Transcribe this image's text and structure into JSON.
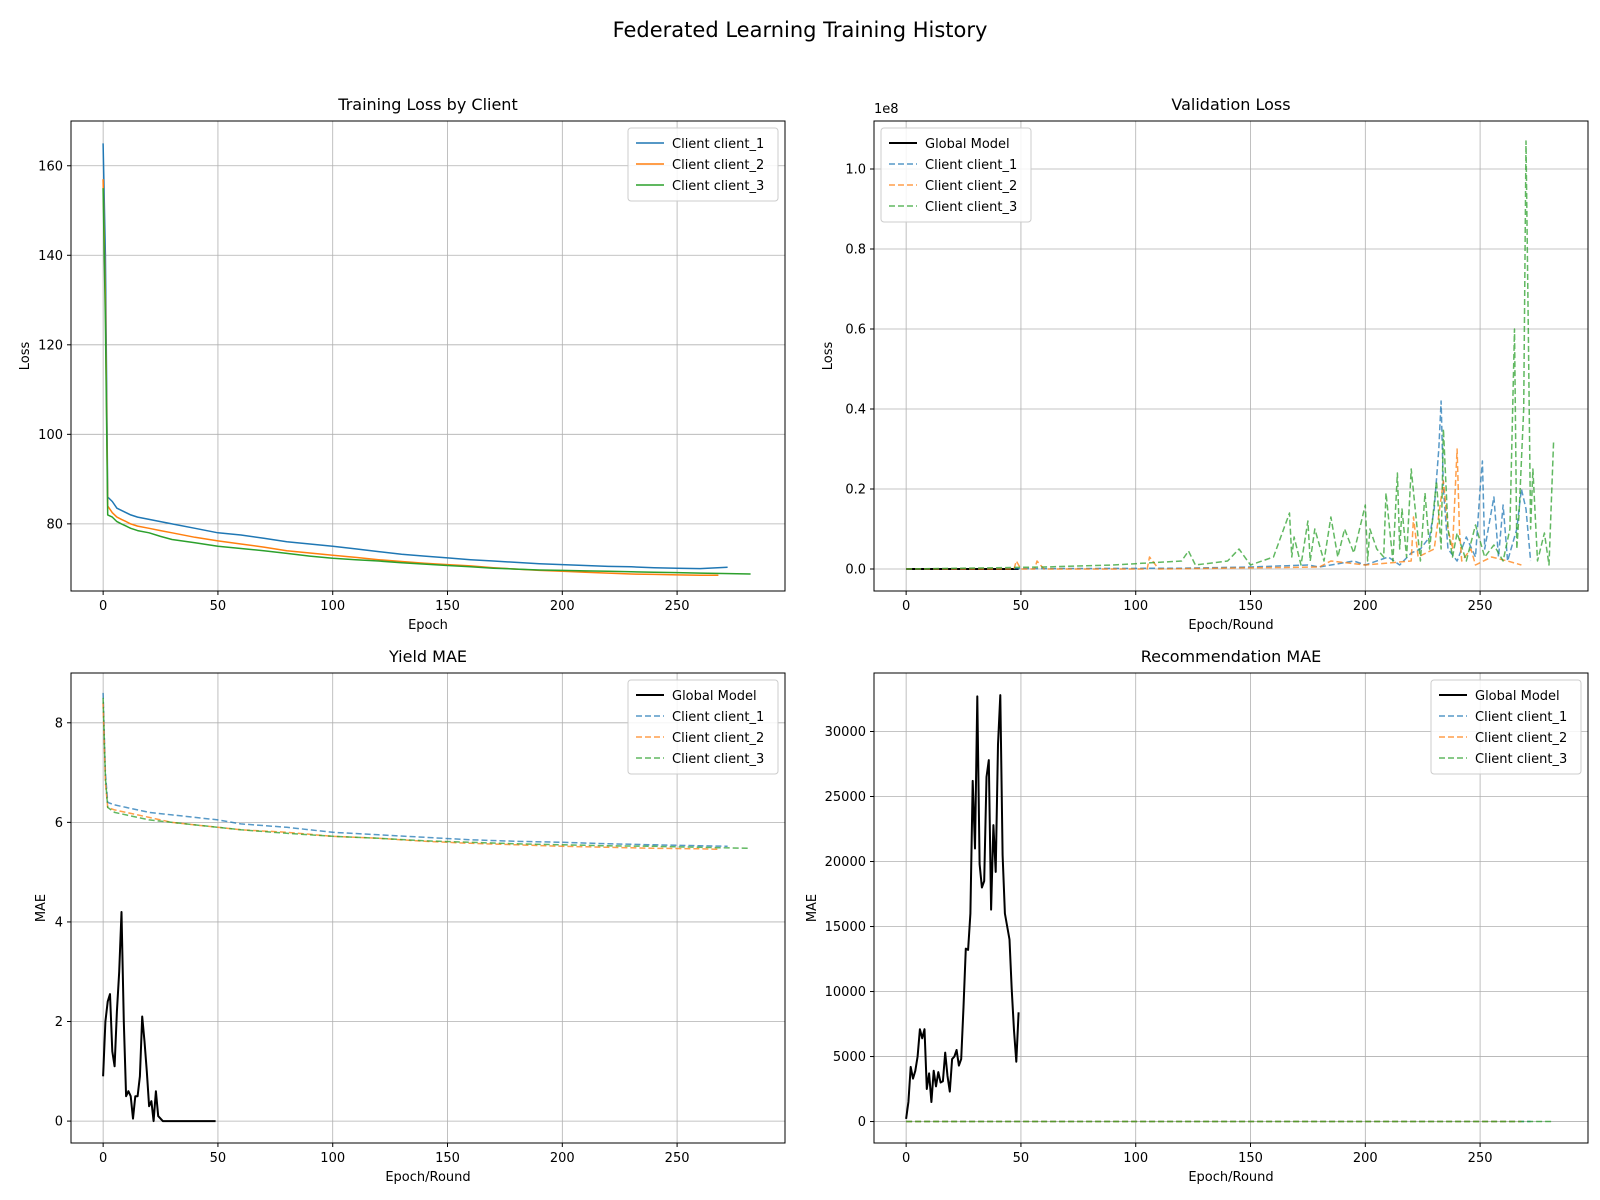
{
  "figure": {
    "title": "Federated Learning Training History"
  },
  "colors": {
    "client_1": "#1f77b4",
    "client_2": "#ff7f0e",
    "client_3": "#2ca02c",
    "global": "#000000",
    "grid": "#b0b0b0"
  },
  "chart_data": [
    {
      "type": "line",
      "title": "Training Loss by Client",
      "xlabel": "Epoch",
      "ylabel": "Loss",
      "xlim": [
        -14,
        297
      ],
      "ylim": [
        65,
        170
      ],
      "xticks": [
        0,
        50,
        100,
        150,
        200,
        250
      ],
      "yticks": [
        80,
        100,
        120,
        140,
        160
      ],
      "grid": true,
      "legend": "top-right",
      "series": [
        {
          "name": "Client client_1",
          "color": "#1f77b4",
          "dash": false,
          "width": 1.5,
          "alpha": 1,
          "x": [
            0,
            1,
            2,
            4,
            6,
            8,
            10,
            12,
            15,
            20,
            25,
            30,
            40,
            50,
            60,
            70,
            80,
            90,
            100,
            110,
            120,
            130,
            140,
            150,
            160,
            170,
            180,
            190,
            200,
            210,
            220,
            230,
            240,
            250,
            260,
            272
          ],
          "y": [
            165,
            140,
            86,
            85,
            83.5,
            83,
            82.5,
            82,
            81.5,
            81,
            80.5,
            80,
            79,
            78,
            77.5,
            76.8,
            76,
            75.5,
            75,
            74.4,
            73.8,
            73.2,
            72.8,
            72.4,
            72,
            71.7,
            71.4,
            71.1,
            70.9,
            70.7,
            70.5,
            70.4,
            70.2,
            70.1,
            70,
            70.3
          ]
        },
        {
          "name": "Client client_2",
          "color": "#ff7f0e",
          "dash": false,
          "width": 1.5,
          "alpha": 1,
          "x": [
            0,
            1,
            2,
            4,
            6,
            8,
            10,
            12,
            15,
            20,
            25,
            30,
            40,
            50,
            60,
            70,
            80,
            90,
            100,
            110,
            120,
            130,
            140,
            150,
            160,
            170,
            180,
            190,
            200,
            210,
            220,
            230,
            240,
            250,
            260,
            268
          ],
          "y": [
            157,
            130,
            84,
            82.5,
            81.5,
            81,
            80.5,
            80,
            79.5,
            79,
            78.5,
            78,
            77,
            76.2,
            75.5,
            74.8,
            74,
            73.5,
            73,
            72.5,
            72,
            71.6,
            71.2,
            70.9,
            70.6,
            70.2,
            69.9,
            69.6,
            69.4,
            69.2,
            69,
            68.8,
            68.7,
            68.6,
            68.5,
            68.5
          ]
        },
        {
          "name": "Client client_3",
          "color": "#2ca02c",
          "dash": false,
          "width": 1.5,
          "alpha": 1,
          "x": [
            0,
            1,
            2,
            4,
            6,
            8,
            10,
            12,
            15,
            20,
            25,
            30,
            40,
            50,
            60,
            70,
            80,
            90,
            100,
            110,
            120,
            130,
            140,
            150,
            160,
            170,
            180,
            190,
            200,
            210,
            220,
            230,
            240,
            250,
            260,
            270,
            282
          ],
          "y": [
            155,
            125,
            82,
            81.5,
            80.5,
            80,
            79.5,
            79,
            78.5,
            78,
            77.2,
            76.5,
            75.8,
            75,
            74.5,
            74,
            73.4,
            72.8,
            72.3,
            72,
            71.7,
            71.3,
            71,
            70.7,
            70.4,
            70.1,
            69.9,
            69.7,
            69.6,
            69.5,
            69.4,
            69.3,
            69.2,
            69.1,
            69,
            68.9,
            68.8
          ]
        }
      ]
    },
    {
      "type": "line",
      "title": "Validation Loss",
      "xlabel": "Epoch/Round",
      "ylabel": "Loss",
      "y_multiplier_label": "1e8",
      "xlim": [
        -14,
        297
      ],
      "ylim": [
        -0.055,
        1.12
      ],
      "xticks": [
        0,
        50,
        100,
        150,
        200,
        250
      ],
      "yticks": [
        0.0,
        0.2,
        0.4,
        0.6,
        0.8,
        1.0
      ],
      "ytick_labels": [
        "0.0",
        "0.2",
        "0.4",
        "0.6",
        "0.8",
        "1.0"
      ],
      "grid": true,
      "legend": "top-left",
      "series": [
        {
          "name": "Global Model",
          "color": "#000000",
          "dash": false,
          "width": 2,
          "alpha": 1,
          "x": [
            0,
            49
          ],
          "y": [
            0,
            0
          ]
        },
        {
          "name": "Client client_1",
          "color": "#1f77b4",
          "dash": true,
          "width": 1.5,
          "alpha": 0.75,
          "x": [
            0,
            120,
            150,
            175,
            180,
            195,
            200,
            210,
            215,
            220,
            224,
            228,
            230,
            232,
            233,
            234,
            236,
            240,
            244,
            248,
            250,
            251,
            252,
            256,
            258,
            260,
            262,
            266,
            268,
            270,
            272
          ],
          "y": [
            0,
            0.002,
            0.005,
            0.01,
            0.005,
            0.02,
            0.01,
            0.03,
            0.01,
            0.04,
            0.05,
            0.08,
            0.15,
            0.3,
            0.42,
            0.2,
            0.05,
            0.02,
            0.08,
            0.03,
            0.2,
            0.27,
            0.05,
            0.18,
            0.03,
            0.16,
            0.02,
            0.1,
            0.2,
            0.15,
            0.02
          ]
        },
        {
          "name": "Client client_2",
          "color": "#ff7f0e",
          "dash": true,
          "width": 1.5,
          "alpha": 0.75,
          "x": [
            0,
            47,
            48,
            50,
            56,
            57,
            60,
            105,
            106,
            110,
            180,
            185,
            200,
            220,
            221,
            223,
            230,
            234,
            236,
            238,
            240,
            241,
            242,
            246,
            248,
            255,
            262,
            268
          ],
          "y": [
            0,
            0,
            0.02,
            0,
            0,
            0.02,
            0,
            0,
            0.03,
            0,
            0.005,
            0.02,
            0.01,
            0.02,
            0.13,
            0.03,
            0.05,
            0.22,
            0.1,
            0.05,
            0.3,
            0.1,
            0.02,
            0.05,
            0.01,
            0.03,
            0.02,
            0.01
          ]
        },
        {
          "name": "Client client_3",
          "color": "#2ca02c",
          "dash": true,
          "width": 1.5,
          "alpha": 0.75,
          "x": [
            0,
            60,
            90,
            120,
            123,
            126,
            140,
            145,
            150,
            160,
            167,
            168,
            169,
            172,
            175,
            176,
            178,
            182,
            185,
            188,
            191,
            195,
            200,
            201,
            202,
            205,
            208,
            209,
            212,
            214,
            215,
            216,
            218,
            220,
            224,
            226,
            228,
            231,
            233,
            234,
            236,
            238,
            240,
            244,
            248,
            252,
            256,
            260,
            263,
            265,
            266,
            267,
            269,
            270,
            271,
            272,
            273,
            275,
            278,
            280,
            282
          ],
          "y": [
            0,
            0.005,
            0.01,
            0.02,
            0.045,
            0.01,
            0.02,
            0.05,
            0.01,
            0.03,
            0.14,
            0.03,
            0.08,
            0.01,
            0.12,
            0.02,
            0.1,
            0.02,
            0.13,
            0.03,
            0.1,
            0.04,
            0.16,
            0.02,
            0.1,
            0.05,
            0.03,
            0.19,
            0.02,
            0.24,
            0.05,
            0.15,
            0.03,
            0.25,
            0.02,
            0.19,
            0.05,
            0.22,
            0.05,
            0.35,
            0.1,
            0.03,
            0.09,
            0.02,
            0.11,
            0.03,
            0.06,
            0.02,
            0.1,
            0.6,
            0.05,
            0.14,
            0.4,
            1.07,
            0.6,
            0.1,
            0.25,
            0.02,
            0.09,
            0.01,
            0.32
          ]
        }
      ]
    },
    {
      "type": "line",
      "title": "Yield MAE",
      "xlabel": "Epoch/Round",
      "ylabel": "MAE",
      "xlim": [
        -14,
        297
      ],
      "ylim": [
        -0.44,
        9.0
      ],
      "xticks": [
        0,
        50,
        100,
        150,
        200,
        250
      ],
      "yticks": [
        0,
        2,
        4,
        6,
        8
      ],
      "grid": true,
      "legend": "top-right",
      "series": [
        {
          "name": "Global Model",
          "color": "#000000",
          "dash": false,
          "width": 2,
          "alpha": 1,
          "x": [
            0,
            1,
            2,
            3,
            4,
            5,
            6,
            7,
            8,
            9,
            10,
            11,
            12,
            13,
            14,
            15,
            16,
            17,
            18,
            19,
            20,
            21,
            22,
            23,
            24,
            25,
            26,
            28,
            30,
            35,
            40,
            45,
            49
          ],
          "y": [
            0.9,
            2.0,
            2.4,
            2.55,
            1.4,
            1.1,
            2.2,
            3.0,
            4.2,
            2.0,
            0.5,
            0.6,
            0.5,
            0.05,
            0.5,
            0.5,
            0.9,
            2.1,
            1.6,
            1.0,
            0.3,
            0.4,
            0.0,
            0.6,
            0.1,
            0.05,
            0.0,
            0.0,
            0.0,
            0.0,
            0.0,
            0.0,
            0.0
          ]
        },
        {
          "name": "Client client_1",
          "color": "#1f77b4",
          "dash": true,
          "width": 1.5,
          "alpha": 0.75,
          "x": [
            0,
            1,
            2,
            5,
            10,
            20,
            30,
            40,
            50,
            60,
            80,
            100,
            120,
            140,
            160,
            180,
            200,
            220,
            240,
            260,
            272
          ],
          "y": [
            8.6,
            7.0,
            6.4,
            6.35,
            6.3,
            6.2,
            6.15,
            6.1,
            6.05,
            5.97,
            5.9,
            5.8,
            5.75,
            5.7,
            5.65,
            5.62,
            5.6,
            5.57,
            5.55,
            5.53,
            5.52
          ]
        },
        {
          "name": "Client client_2",
          "color": "#ff7f0e",
          "dash": true,
          "width": 1.5,
          "alpha": 0.75,
          "x": [
            0,
            1,
            2,
            5,
            10,
            20,
            30,
            40,
            50,
            60,
            80,
            100,
            120,
            140,
            160,
            180,
            200,
            220,
            240,
            260,
            268
          ],
          "y": [
            8.4,
            6.8,
            6.3,
            6.25,
            6.2,
            6.1,
            6.0,
            5.95,
            5.9,
            5.85,
            5.8,
            5.72,
            5.68,
            5.62,
            5.58,
            5.55,
            5.52,
            5.5,
            5.48,
            5.47,
            5.46
          ]
        },
        {
          "name": "Client client_3",
          "color": "#2ca02c",
          "dash": true,
          "width": 1.5,
          "alpha": 0.75,
          "x": [
            0,
            1,
            2,
            5,
            10,
            20,
            30,
            40,
            50,
            60,
            80,
            100,
            120,
            140,
            160,
            180,
            200,
            220,
            240,
            260,
            270,
            282
          ],
          "y": [
            8.5,
            6.9,
            6.3,
            6.2,
            6.15,
            6.05,
            6.0,
            5.95,
            5.9,
            5.85,
            5.78,
            5.72,
            5.68,
            5.63,
            5.6,
            5.57,
            5.55,
            5.53,
            5.52,
            5.5,
            5.49,
            5.48
          ]
        }
      ]
    },
    {
      "type": "line",
      "title": "Recommendation MAE",
      "xlabel": "Epoch/Round",
      "ylabel": "MAE",
      "xlim": [
        -14,
        297
      ],
      "ylim": [
        -1650,
        34500
      ],
      "xticks": [
        0,
        50,
        100,
        150,
        200,
        250
      ],
      "yticks": [
        0,
        5000,
        10000,
        15000,
        20000,
        25000,
        30000
      ],
      "grid": true,
      "legend": "top-right",
      "series": [
        {
          "name": "Global Model",
          "color": "#000000",
          "dash": false,
          "width": 2,
          "alpha": 1,
          "x": [
            0,
            1,
            2,
            3,
            4,
            5,
            6,
            7,
            8,
            9,
            10,
            11,
            12,
            13,
            14,
            15,
            16,
            17,
            18,
            19,
            20,
            21,
            22,
            23,
            24,
            25,
            26,
            27,
            28,
            29,
            30,
            31,
            32,
            33,
            34,
            35,
            36,
            37,
            38,
            39,
            40,
            41,
            42,
            43,
            44,
            45,
            46,
            47,
            48,
            49
          ],
          "y": [
            200,
            1500,
            4200,
            3300,
            3900,
            5000,
            7100,
            6400,
            7100,
            2500,
            3700,
            1500,
            3900,
            2700,
            3800,
            3000,
            3100,
            5300,
            3500,
            2300,
            4800,
            5000,
            5500,
            4300,
            4800,
            8800,
            13300,
            13200,
            16000,
            26200,
            21000,
            32700,
            19800,
            18000,
            18500,
            26500,
            27800,
            16300,
            22800,
            19200,
            29000,
            32800,
            20500,
            16000,
            15000,
            14000,
            10200,
            7000,
            4600,
            8400
          ]
        },
        {
          "name": "Client client_1",
          "color": "#1f77b4",
          "dash": true,
          "width": 1.5,
          "alpha": 0.75,
          "x": [
            0,
            272
          ],
          "y": [
            0,
            0
          ]
        },
        {
          "name": "Client client_2",
          "color": "#ff7f0e",
          "dash": true,
          "width": 1.5,
          "alpha": 0.75,
          "x": [
            0,
            268
          ],
          "y": [
            0,
            0
          ]
        },
        {
          "name": "Client client_3",
          "color": "#2ca02c",
          "dash": true,
          "width": 1.5,
          "alpha": 0.75,
          "x": [
            0,
            282
          ],
          "y": [
            0,
            0
          ]
        }
      ]
    }
  ]
}
